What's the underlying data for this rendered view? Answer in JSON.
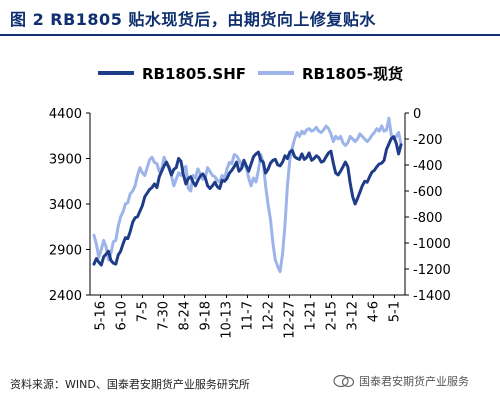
{
  "title": "图 2   RB1805 贴水现货后，由期货向上修复贴水",
  "source_text": "资料来源：WIND、国泰君安期货产业服务研究所",
  "watermark_text": "国泰君安期货产业服务",
  "colors": {
    "title": "#0f2f6f",
    "futures": "#1f3c88",
    "spot": "#9db4ea"
  },
  "chart_data": {
    "type": "line",
    "legend_position": "top",
    "grid": false,
    "x_tick_labels": [
      "5-16",
      "6-10",
      "7-5",
      "7-30",
      "8-24",
      "9-18",
      "10-13",
      "11-7",
      "12-2",
      "12-27",
      "1-21",
      "2-15",
      "3-12",
      "4-6",
      "5-1"
    ],
    "left_axis": {
      "ticks": [
        2400,
        2900,
        3400,
        3900,
        4400
      ],
      "ylim": [
        2400,
        4400
      ]
    },
    "right_axis": {
      "ticks": [
        0,
        -200,
        -400,
        -600,
        -800,
        -1000,
        -1200,
        -1400
      ],
      "ylim": [
        -1400,
        0
      ]
    },
    "series": [
      {
        "name": "RB1805.SHF",
        "axis": "left",
        "width": 3,
        "values": [
          2740,
          2800,
          2760,
          2730,
          2820,
          2850,
          2880,
          2780,
          2750,
          2740,
          2840,
          2880,
          2960,
          3030,
          3020,
          3100,
          3200,
          3250,
          3260,
          3320,
          3380,
          3480,
          3520,
          3560,
          3580,
          3620,
          3580,
          3700,
          3760,
          3820,
          3860,
          3800,
          3720,
          3780,
          3800,
          3900,
          3870,
          3720,
          3620,
          3680,
          3700,
          3640,
          3600,
          3660,
          3710,
          3730,
          3690,
          3600,
          3570,
          3600,
          3640,
          3590,
          3570,
          3660,
          3650,
          3680,
          3740,
          3770,
          3810,
          3860,
          3760,
          3790,
          3880,
          3820,
          3760,
          3840,
          3920,
          3950,
          3970,
          3880,
          3860,
          3740,
          3780,
          3850,
          3880,
          3890,
          3830,
          3820,
          3860,
          3930,
          3900,
          3970,
          3990,
          3920,
          3900,
          3890,
          3950,
          3890,
          3910,
          3960,
          3880,
          3900,
          3930,
          3910,
          3860,
          3870,
          3920,
          3960,
          3980,
          3850,
          3740,
          3720,
          3760,
          3810,
          3860,
          3810,
          3630,
          3480,
          3400,
          3460,
          3530,
          3600,
          3650,
          3640,
          3700,
          3750,
          3770,
          3810,
          3840,
          3850,
          3880,
          4000,
          4060,
          4120,
          4140,
          4070,
          3950,
          4050
        ]
      },
      {
        "name": "RB1805-现货",
        "axis": "right",
        "width": 3,
        "values": [
          -940,
          -1010,
          -1110,
          -1050,
          -980,
          -1030,
          -1130,
          -1080,
          -990,
          -980,
          -870,
          -800,
          -760,
          -700,
          -690,
          -620,
          -600,
          -560,
          -480,
          -420,
          -460,
          -480,
          -420,
          -360,
          -340,
          -380,
          -390,
          -450,
          -430,
          -340,
          -390,
          -410,
          -480,
          -560,
          -510,
          -460,
          -480,
          -430,
          -410,
          -580,
          -600,
          -480,
          -500,
          -430,
          -470,
          -510,
          -500,
          -420,
          -450,
          -480,
          -490,
          -520,
          -530,
          -480,
          -510,
          -430,
          -380,
          -390,
          -320,
          -330,
          -360,
          -400,
          -400,
          -420,
          -500,
          -560,
          -500,
          -530,
          -440,
          -320,
          -380,
          -560,
          -700,
          -820,
          -1000,
          -1130,
          -1180,
          -1220,
          -1080,
          -860,
          -560,
          -360,
          -270,
          -200,
          -150,
          -180,
          -140,
          -160,
          -130,
          -120,
          -140,
          -130,
          -110,
          -140,
          -150,
          -130,
          -100,
          -120,
          -160,
          -220,
          -180,
          -200,
          -180,
          -230,
          -250,
          -230,
          -180,
          -200,
          -220,
          -200,
          -160,
          -180,
          -200,
          -220,
          -200,
          -170,
          -150,
          -120,
          -140,
          -100,
          -140,
          -130,
          -40,
          -170,
          -200,
          -180,
          -150,
          -240
        ]
      }
    ]
  }
}
